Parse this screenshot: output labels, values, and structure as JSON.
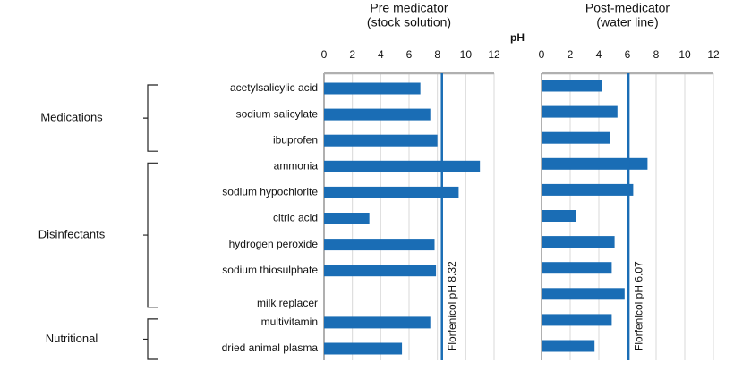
{
  "chart_data": [
    {
      "type": "bar",
      "orientation": "horizontal",
      "title": [
        "Pre medicator",
        "(stock solution)"
      ],
      "xlabel": "pH",
      "categories": [
        "acetylsalicylic acid",
        "sodium salicylate",
        "ibuprofen",
        "ammonia",
        "sodium hypochlorite",
        "citric acid",
        "hydrogen peroxide",
        "sodium thiosulphate",
        "milk replacer",
        "multivitamin",
        "dried animal plasma"
      ],
      "groups": [
        "Medications",
        "Disinfectants",
        "Nutritional"
      ],
      "values": [
        6.8,
        7.5,
        8.0,
        11.0,
        9.5,
        3.2,
        7.8,
        7.9,
        null,
        7.5,
        5.5
      ],
      "color": "#1a6db5",
      "xlim": [
        0,
        12
      ],
      "xticks": [
        0,
        2,
        4,
        6,
        8,
        10,
        12
      ],
      "grid": true,
      "reference_lines": [
        {
          "value": 8.32,
          "label": "Florfenicol pH 8.32",
          "color": "#1a6db5"
        }
      ]
    },
    {
      "type": "bar",
      "orientation": "horizontal",
      "title": [
        "Post-medicator",
        "(water line)"
      ],
      "values": [
        4.2,
        5.3,
        4.8,
        7.4,
        6.4,
        2.4,
        5.1,
        4.9,
        5.8,
        4.9,
        3.7
      ],
      "color": "#1a6db5",
      "xlim": [
        0,
        12
      ],
      "xticks": [
        0,
        2,
        4,
        6,
        8,
        10,
        12
      ],
      "grid": true,
      "reference_lines": [
        {
          "value": 6.07,
          "label": "Florfenicol pH 6.07",
          "color": "#1a6db5"
        }
      ]
    }
  ]
}
